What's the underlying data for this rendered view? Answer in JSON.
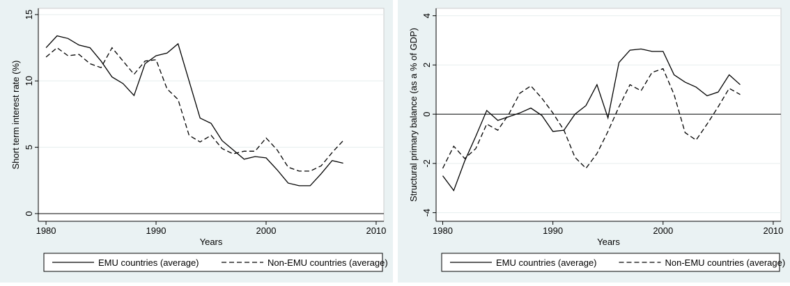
{
  "chart_data": [
    {
      "type": "line",
      "ylabel": "Short term interest rate (%)",
      "xlabel": "Years",
      "x": [
        1980,
        1981,
        1982,
        1983,
        1984,
        1985,
        1986,
        1987,
        1988,
        1989,
        1990,
        1991,
        1992,
        1993,
        1994,
        1995,
        1996,
        1997,
        1998,
        1999,
        2000,
        2001,
        2002,
        2003,
        2004,
        2005,
        2006,
        2007
      ],
      "series": [
        {
          "name": "EMU countries (average)",
          "color": "#000000",
          "line_style": "solid",
          "values": [
            12.5,
            13.4,
            13.2,
            12.7,
            12.5,
            11.5,
            10.3,
            9.8,
            8.9,
            11.3,
            11.9,
            12.1,
            12.8,
            10.0,
            7.2,
            6.8,
            5.5,
            4.8,
            4.1,
            4.3,
            4.2,
            3.3,
            2.3,
            2.1,
            2.1,
            3.0,
            4.0,
            3.8
          ]
        },
        {
          "name": "Non-EMU countries (average)",
          "color": "#000000",
          "line_style": "dashed",
          "values": [
            11.8,
            12.5,
            11.9,
            12.0,
            11.3,
            11.0,
            12.5,
            11.5,
            10.5,
            11.5,
            11.6,
            9.4,
            8.6,
            5.9,
            5.4,
            5.9,
            4.9,
            4.5,
            4.7,
            4.7,
            5.7,
            4.8,
            3.5,
            3.2,
            3.2,
            3.6,
            4.6,
            5.5
          ]
        }
      ],
      "xlim": [
        1979.3,
        2010.7
      ],
      "xticks": [
        1980,
        1990,
        2000,
        2010
      ],
      "ylim": [
        -0.58,
        15.47
      ],
      "yticks": [
        0,
        5,
        10,
        15
      ],
      "grid": true,
      "yline": 0
    },
    {
      "type": "line",
      "ylabel": "Structural primary balance (as a % of GDP)",
      "xlabel": "Years",
      "x": [
        1980,
        1981,
        1982,
        1983,
        1984,
        1985,
        1986,
        1987,
        1988,
        1989,
        1990,
        1991,
        1992,
        1993,
        1994,
        1995,
        1996,
        1997,
        1998,
        1999,
        2000,
        2001,
        2002,
        2003,
        2004,
        2005,
        2006,
        2007
      ],
      "series": [
        {
          "name": "EMU countries (average)",
          "color": "#000000",
          "line_style": "solid",
          "values": [
            -2.5,
            -3.1,
            -1.9,
            -0.9,
            0.15,
            -0.25,
            -0.1,
            0.05,
            0.25,
            -0.05,
            -0.7,
            -0.65,
            0.0,
            0.35,
            1.2,
            -0.15,
            2.1,
            2.6,
            2.65,
            2.55,
            2.55,
            1.6,
            1.3,
            1.1,
            0.75,
            0.9,
            1.6,
            1.2
          ]
        },
        {
          "name": "Non-EMU countries (average)",
          "color": "#000000",
          "line_style": "dashed",
          "values": [
            -2.2,
            -1.3,
            -1.8,
            -1.4,
            -0.4,
            -0.65,
            0.0,
            0.85,
            1.15,
            0.65,
            0.05,
            -0.65,
            -1.75,
            -2.2,
            -1.6,
            -0.7,
            0.3,
            1.2,
            0.95,
            1.7,
            1.85,
            0.8,
            -0.75,
            -1.05,
            -0.4,
            0.3,
            1.05,
            0.8
          ]
        }
      ],
      "xlim": [
        1979.4,
        2010.7
      ],
      "xticks": [
        1980,
        1990,
        2000,
        2010
      ],
      "ylim": [
        -4.35,
        4.3
      ],
      "yticks": [
        -4,
        -2,
        0,
        2,
        4
      ],
      "grid": true,
      "yline": 0
    }
  ]
}
